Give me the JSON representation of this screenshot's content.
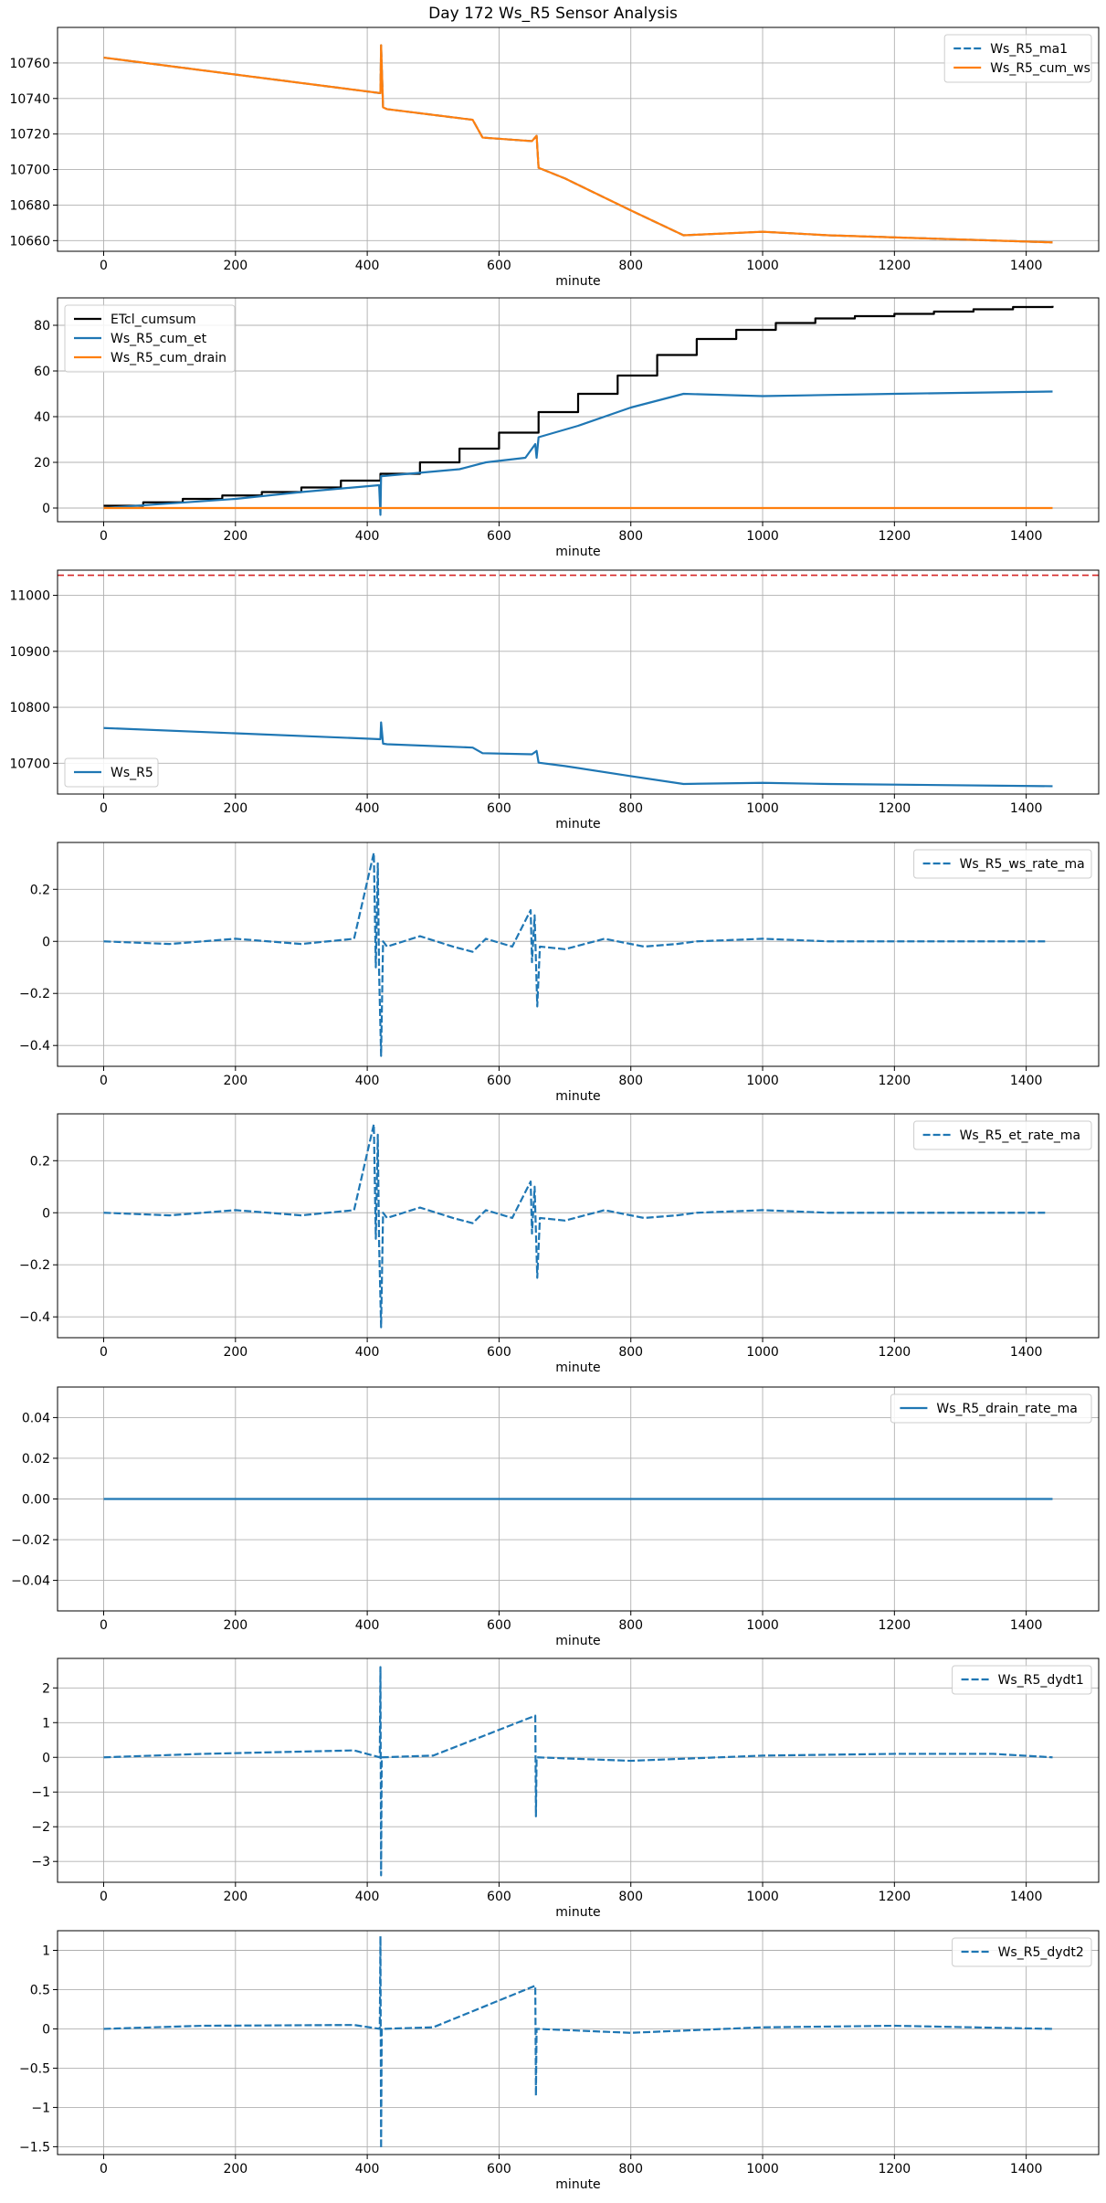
{
  "figure": {
    "title": "Day 172 Ws_R5 Sensor Analysis"
  },
  "colors": {
    "blue": "#1f77b4",
    "orange": "#ff7f0e",
    "black": "#000000",
    "red": "#d62728",
    "grid": "#b0b0b0"
  },
  "chart_data": [
    {
      "type": "line",
      "xlabel": "minute",
      "xlim": [
        -70,
        1510
      ],
      "xticks": [
        0,
        200,
        400,
        600,
        800,
        1000,
        1200,
        1400
      ],
      "ylim": [
        10654,
        10780
      ],
      "yticks": [
        10660,
        10680,
        10700,
        10720,
        10740,
        10760
      ],
      "legend": "top-right",
      "series": [
        {
          "name": "Ws_R5_ma1",
          "color": "blue",
          "style": "dashed",
          "x": [
            0,
            420,
            421,
            424,
            430,
            560,
            575,
            650,
            657,
            660,
            700,
            800,
            880,
            1000,
            1100,
            1440
          ],
          "y": [
            10763,
            10743,
            10770,
            10735,
            10734,
            10728,
            10718,
            10716,
            10719,
            10701,
            10695,
            10677,
            10663,
            10665,
            10663,
            10659
          ]
        },
        {
          "name": "Ws_R5_cum_ws",
          "color": "orange",
          "style": "solid",
          "x": [
            0,
            420,
            421,
            424,
            430,
            560,
            575,
            650,
            657,
            660,
            700,
            800,
            880,
            1000,
            1100,
            1440
          ],
          "y": [
            10763,
            10743,
            10770,
            10735,
            10734,
            10728,
            10718,
            10716,
            10719,
            10701,
            10695,
            10677,
            10663,
            10665,
            10663,
            10659
          ]
        }
      ]
    },
    {
      "type": "line",
      "xlabel": "minute",
      "xlim": [
        -70,
        1510
      ],
      "xticks": [
        0,
        200,
        400,
        600,
        800,
        1000,
        1200,
        1400
      ],
      "ylim": [
        -6,
        92
      ],
      "yticks": [
        0,
        20,
        40,
        60,
        80
      ],
      "legend": "top-left",
      "series": [
        {
          "name": "ETcl_cumsum",
          "color": "black",
          "style": "step",
          "x": [
            0,
            60,
            120,
            180,
            240,
            300,
            360,
            420,
            480,
            540,
            600,
            660,
            720,
            780,
            840,
            900,
            960,
            1020,
            1080,
            1140,
            1200,
            1260,
            1320,
            1380,
            1440
          ],
          "y": [
            1,
            2.5,
            4,
            5.5,
            7,
            9,
            12,
            15,
            20,
            26,
            33,
            42,
            50,
            58,
            67,
            74,
            78,
            81,
            83,
            84,
            85,
            86,
            87,
            88,
            88.5
          ]
        },
        {
          "name": "Ws_R5_cum_et",
          "color": "blue",
          "style": "solid",
          "x": [
            0,
            200,
            300,
            418,
            420,
            421,
            424,
            540,
            580,
            640,
            655,
            657,
            660,
            720,
            800,
            880,
            1000,
            1200,
            1440
          ],
          "y": [
            0,
            4,
            7,
            10,
            -3,
            14,
            14,
            17,
            20,
            22,
            28,
            22,
            31,
            36,
            44,
            50,
            49,
            50,
            51
          ]
        },
        {
          "name": "Ws_R5_cum_drain",
          "color": "orange",
          "style": "solid",
          "x": [
            0,
            1440
          ],
          "y": [
            0,
            0
          ]
        }
      ]
    },
    {
      "type": "line",
      "xlabel": "minute",
      "xlim": [
        -70,
        1510
      ],
      "xticks": [
        0,
        200,
        400,
        600,
        800,
        1000,
        1200,
        1400
      ],
      "ylim": [
        10645,
        11045
      ],
      "yticks": [
        10700,
        10800,
        10900,
        11000
      ],
      "legend": "bottom-left",
      "hline": {
        "y": 11036,
        "color": "red",
        "style": "dashed"
      },
      "series": [
        {
          "name": "Ws_R5",
          "color": "blue",
          "style": "solid",
          "x": [
            0,
            420,
            421,
            424,
            430,
            560,
            575,
            650,
            657,
            660,
            700,
            800,
            880,
            1000,
            1100,
            1440
          ],
          "y": [
            10763,
            10743,
            10773,
            10735,
            10734,
            10728,
            10718,
            10716,
            10722,
            10701,
            10695,
            10677,
            10663,
            10665,
            10663,
            10659
          ]
        }
      ]
    },
    {
      "type": "line",
      "xlabel": "minute",
      "xlim": [
        -70,
        1510
      ],
      "xticks": [
        0,
        200,
        400,
        600,
        800,
        1000,
        1200,
        1400
      ],
      "ylim": [
        -0.48,
        0.38
      ],
      "yticks": [
        -0.4,
        -0.2,
        0.0,
        0.2
      ],
      "legend": "top-right",
      "series": [
        {
          "name": "Ws_R5_ws_rate_ma",
          "color": "blue",
          "style": "dashed",
          "x": [
            0,
            100,
            200,
            300,
            380,
            410,
            413,
            416,
            418,
            421,
            424,
            430,
            480,
            530,
            560,
            580,
            620,
            648,
            650,
            654,
            658,
            662,
            700,
            760,
            820,
            870,
            900,
            1000,
            1100,
            1200,
            1300,
            1430
          ],
          "y": [
            0,
            -0.01,
            0.01,
            -0.01,
            0.01,
            0.34,
            -0.1,
            0.3,
            -0.12,
            -0.44,
            0.0,
            -0.02,
            0.02,
            -0.02,
            -0.04,
            0.01,
            -0.02,
            0.12,
            -0.08,
            0.1,
            -0.25,
            -0.02,
            -0.03,
            0.01,
            -0.02,
            -0.01,
            0.0,
            0.01,
            0.0,
            0.0,
            0.0,
            0.0
          ]
        }
      ]
    },
    {
      "type": "line",
      "xlabel": "minute",
      "xlim": [
        -70,
        1510
      ],
      "xticks": [
        0,
        200,
        400,
        600,
        800,
        1000,
        1200,
        1400
      ],
      "ylim": [
        -0.48,
        0.38
      ],
      "yticks": [
        -0.4,
        -0.2,
        0.0,
        0.2
      ],
      "legend": "top-right",
      "series": [
        {
          "name": "Ws_R5_et_rate_ma",
          "color": "blue",
          "style": "dashed",
          "x": [
            0,
            100,
            200,
            300,
            380,
            410,
            413,
            416,
            418,
            421,
            424,
            430,
            480,
            530,
            560,
            580,
            620,
            648,
            650,
            654,
            658,
            662,
            700,
            760,
            820,
            870,
            900,
            1000,
            1100,
            1200,
            1300,
            1430
          ],
          "y": [
            0,
            -0.01,
            0.01,
            -0.01,
            0.01,
            0.34,
            -0.1,
            0.3,
            -0.12,
            -0.44,
            0.0,
            -0.02,
            0.02,
            -0.02,
            -0.04,
            0.01,
            -0.02,
            0.12,
            -0.08,
            0.1,
            -0.25,
            -0.02,
            -0.03,
            0.01,
            -0.02,
            -0.01,
            0.0,
            0.01,
            0.0,
            0.0,
            0.0,
            0.0
          ]
        }
      ]
    },
    {
      "type": "line",
      "xlabel": "minute",
      "xlim": [
        -70,
        1510
      ],
      "xticks": [
        0,
        200,
        400,
        600,
        800,
        1000,
        1200,
        1400
      ],
      "ylim": [
        -0.055,
        0.055
      ],
      "yticks": [
        -0.04,
        -0.02,
        0.0,
        0.02,
        0.04
      ],
      "ytick_labels": [
        "-0.04",
        "-0.02",
        "0.00",
        "0.02",
        "0.04"
      ],
      "legend": "top-right",
      "series": [
        {
          "name": "Ws_R5_drain_rate_ma",
          "color": "blue",
          "style": "solid",
          "x": [
            0,
            1440
          ],
          "y": [
            0,
            0
          ]
        }
      ]
    },
    {
      "type": "line",
      "xlabel": "minute",
      "xlim": [
        -70,
        1510
      ],
      "xticks": [
        0,
        200,
        400,
        600,
        800,
        1000,
        1200,
        1400
      ],
      "ylim": [
        -3.6,
        2.85
      ],
      "yticks": [
        -3,
        -2,
        -1,
        0,
        1,
        2
      ],
      "legend": "top-right",
      "series": [
        {
          "name": "Ws_R5_dydt1",
          "color": "blue",
          "style": "dashed",
          "x": [
            0,
            150,
            380,
            419,
            420,
            421,
            422,
            500,
            655,
            656,
            657,
            658,
            800,
            1000,
            1200,
            1350,
            1440
          ],
          "y": [
            0,
            0.1,
            0.2,
            0,
            2.6,
            -3.4,
            0,
            0.05,
            1.2,
            -1.7,
            0,
            0,
            -0.1,
            0.05,
            0.1,
            0.1,
            0
          ]
        }
      ]
    },
    {
      "type": "line",
      "xlabel": "minute",
      "xlim": [
        -70,
        1510
      ],
      "xticks": [
        0,
        200,
        400,
        600,
        800,
        1000,
        1200,
        1400
      ],
      "ylim": [
        -1.6,
        1.25
      ],
      "yticks": [
        -1.5,
        -1.0,
        -0.5,
        0.0,
        0.5,
        1.0
      ],
      "legend": "top-right",
      "series": [
        {
          "name": "Ws_R5_dydt2",
          "color": "blue",
          "style": "dashed",
          "x": [
            0,
            150,
            380,
            419,
            420,
            421,
            422,
            500,
            655,
            656,
            657,
            658,
            800,
            1000,
            1200,
            1440
          ],
          "y": [
            0,
            0.04,
            0.05,
            0,
            1.18,
            -1.52,
            0,
            0.02,
            0.55,
            -0.85,
            0,
            0,
            -0.05,
            0.02,
            0.04,
            0
          ]
        }
      ]
    }
  ]
}
